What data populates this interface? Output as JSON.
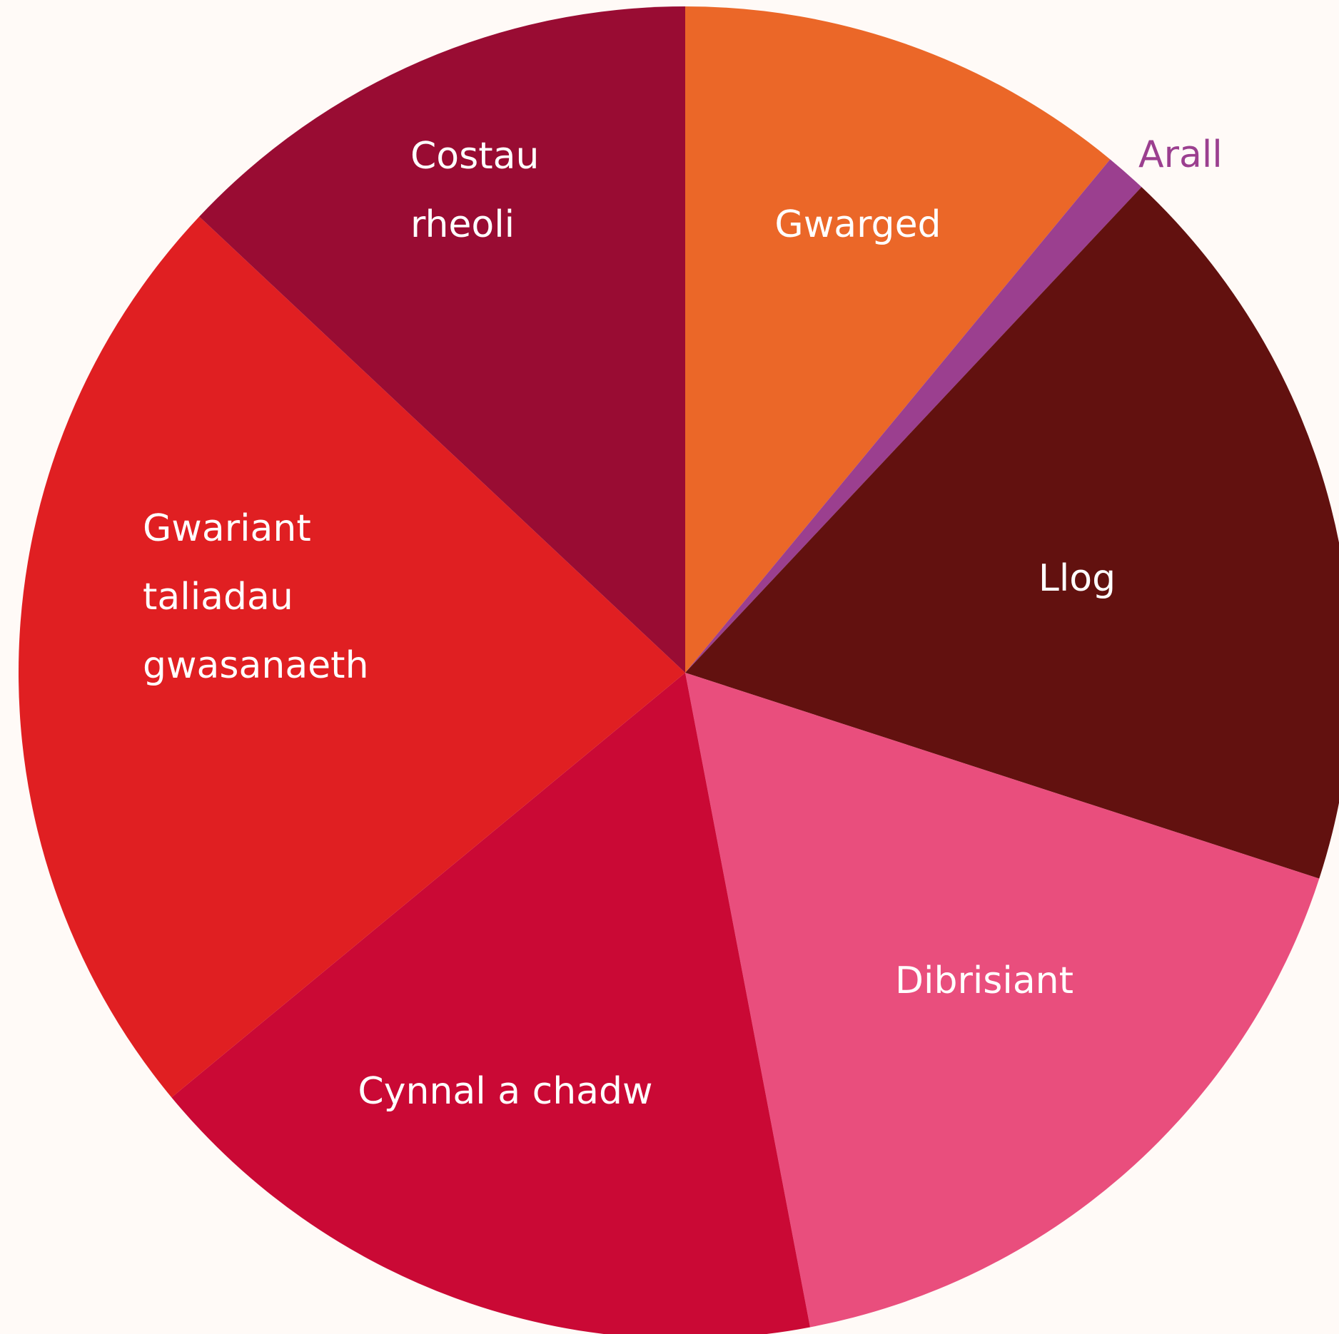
{
  "chart_data": {
    "type": "pie",
    "categories": [
      "Gwarged",
      "Arall",
      "Llog",
      "Dibrisiant",
      "Cynnal a chadw",
      "Gwariant taliadau gwasanaeth",
      "Costau rheoli"
    ],
    "values": [
      11,
      1,
      18,
      17,
      17,
      23,
      13
    ],
    "colors": [
      "#eb6728",
      "#9b3f8f",
      "#62110f",
      "#e94e7d",
      "#ca0935",
      "#e01f22",
      "#990c33"
    ]
  }
}
